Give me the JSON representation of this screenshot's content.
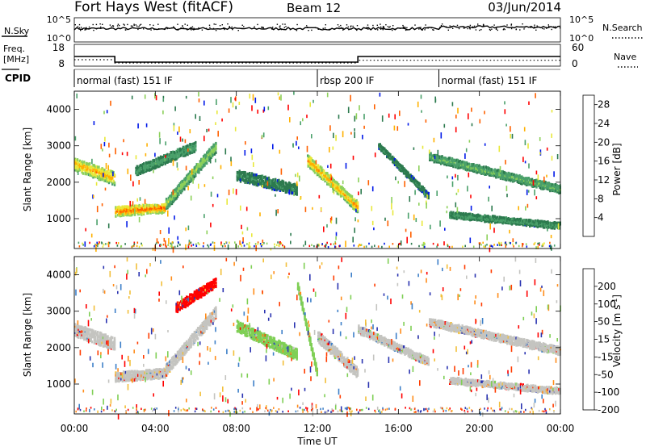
{
  "header": {
    "station": "Fort Hays West (fitACF)",
    "beam": "Beam 12",
    "date": "03/Jun/2014"
  },
  "strips": {
    "nsky_label": "N.Sky",
    "nsky_ticks": [
      "10^5",
      "10^0"
    ],
    "nsearch_label": "N.Search",
    "nsearch_ticks": [
      "10^5",
      "10^0"
    ],
    "freq_label": "Freq.",
    "freq_unit": "[MHz]",
    "freq_ticks": [
      "18",
      "8"
    ],
    "nave_label": "Nave",
    "nave_ticks": [
      "60",
      "0"
    ],
    "cpid_label": "CPID",
    "cpid_segments": [
      {
        "name": "normal (fast) 151 IF",
        "start_hour": 0
      },
      {
        "name": "rbsp 200 IF",
        "start_hour": 12
      },
      {
        "name": "normal (fast) 151 IF",
        "start_hour": 18
      }
    ],
    "freq_series": [
      [
        0,
        14
      ],
      [
        2,
        14
      ],
      [
        2,
        10.5
      ],
      [
        14,
        10.5
      ],
      [
        14,
        14
      ],
      [
        24,
        14
      ]
    ],
    "nave_series": [
      [
        0,
        15
      ],
      [
        2,
        15
      ],
      [
        2,
        3
      ],
      [
        14,
        3
      ],
      [
        14,
        13
      ],
      [
        24,
        13
      ]
    ]
  },
  "chart_data": [
    {
      "type": "heatmap",
      "panel": "power",
      "ylabel": "Slant Range [km]",
      "ylim": [
        180,
        4500
      ],
      "yticks": [
        "1000",
        "2000",
        "3000",
        "4000"
      ],
      "xlim": [
        0,
        24
      ],
      "colorbar": {
        "label": "Power [dB]",
        "ticks": [
          "4",
          "8",
          "12",
          "16",
          "20",
          "24",
          "28"
        ],
        "range": [
          0,
          30
        ],
        "colors": [
          "#0018e8",
          "#2c7a4e",
          "#4aa06a",
          "#8cd05a",
          "#e8e83a",
          "#ffb000",
          "#ff6000",
          "#ff0000"
        ]
      },
      "features": [
        {
          "kind": "band",
          "t0": 0,
          "t1": 2,
          "r0": 2500,
          "r1": 2100,
          "width": 350,
          "level": 22
        },
        {
          "kind": "band",
          "t0": 2,
          "t1": 4.5,
          "r0": 1200,
          "r1": 1300,
          "width": 250,
          "level": 26
        },
        {
          "kind": "band",
          "t0": 4.5,
          "t1": 7,
          "r0": 1400,
          "r1": 3000,
          "width": 300,
          "level": 14
        },
        {
          "kind": "band",
          "t0": 3,
          "t1": 6,
          "r0": 2300,
          "r1": 3000,
          "width": 250,
          "level": 9
        },
        {
          "kind": "band",
          "t0": 11.5,
          "t1": 14,
          "r0": 2600,
          "r1": 1300,
          "width": 300,
          "level": 22
        },
        {
          "kind": "band",
          "t0": 15,
          "t1": 17.5,
          "r0": 3000,
          "r1": 1600,
          "width": 150,
          "level": 6
        },
        {
          "kind": "band",
          "t0": 17.5,
          "t1": 24,
          "r0": 2700,
          "r1": 1800,
          "width": 200,
          "level": 11
        },
        {
          "kind": "band",
          "t0": 18.5,
          "t1": 24,
          "r0": 1100,
          "r1": 800,
          "width": 150,
          "level": 8
        },
        {
          "kind": "band",
          "t0": 8,
          "t1": 11,
          "r0": 2200,
          "r1": 1800,
          "width": 300,
          "level": 6
        }
      ]
    },
    {
      "type": "heatmap",
      "panel": "velocity",
      "ylabel": "Slant Range [km]",
      "ylim": [
        180,
        4500
      ],
      "yticks": [
        "1000",
        "2000",
        "3000",
        "4000"
      ],
      "xlim": [
        0,
        24
      ],
      "xticks": [
        "00:00",
        "04:00",
        "08:00",
        "12:00",
        "16:00",
        "20:00",
        "00:00"
      ],
      "xlabel": "Time UT",
      "colorbar": {
        "label": "Velocity [m s",
        "ticks": [
          "200",
          "100",
          "50",
          "15",
          "-15",
          "-50",
          "-100",
          "-200"
        ],
        "colors": [
          "#2a33b0",
          "#3d7fc8",
          "#7fcf55",
          "#c4c4c0",
          "#f2bf3a",
          "#ff8c1a",
          "#ff3c00",
          "#ff0000"
        ]
      },
      "features": [
        {
          "kind": "band",
          "t0": 0,
          "t1": 2,
          "r0": 2500,
          "r1": 2100,
          "width": 350,
          "level": 3
        },
        {
          "kind": "band",
          "t0": 2,
          "t1": 4.5,
          "r0": 1200,
          "r1": 1300,
          "width": 250,
          "level": 3
        },
        {
          "kind": "band",
          "t0": 4.5,
          "t1": 7,
          "r0": 1400,
          "r1": 3000,
          "width": 300,
          "level": 3
        },
        {
          "kind": "band",
          "t0": 5,
          "t1": 7,
          "r0": 3100,
          "r1": 3800,
          "width": 250,
          "level": 7
        },
        {
          "kind": "band",
          "t0": 8,
          "t1": 11,
          "r0": 2600,
          "r1": 1800,
          "width": 300,
          "level": 2
        },
        {
          "kind": "band",
          "t0": 11,
          "t1": 12,
          "r0": 3700,
          "r1": 1200,
          "width": 200,
          "level": 2
        },
        {
          "kind": "band",
          "t0": 12,
          "t1": 14,
          "r0": 2300,
          "r1": 1300,
          "width": 300,
          "level": 3
        },
        {
          "kind": "band",
          "t0": 14,
          "t1": 17.5,
          "r0": 2500,
          "r1": 1600,
          "width": 200,
          "level": 3
        },
        {
          "kind": "band",
          "t0": 17.5,
          "t1": 24,
          "r0": 2700,
          "r1": 1900,
          "width": 200,
          "level": 3
        },
        {
          "kind": "band",
          "t0": 18.5,
          "t1": 24,
          "r0": 1100,
          "r1": 800,
          "width": 150,
          "level": 3
        }
      ]
    }
  ]
}
